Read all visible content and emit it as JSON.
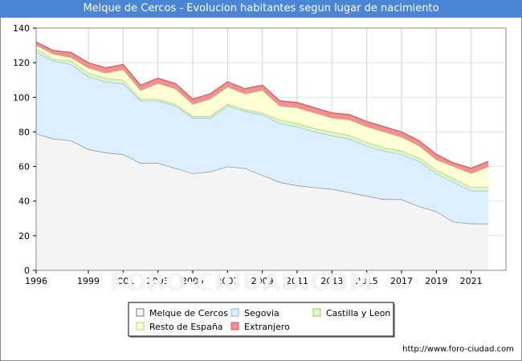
{
  "header": {
    "title": "Melque de Cercos - Evolucion habitantes segun lugar de nacimiento"
  },
  "footer": {
    "url": "http://www.foro-ciudad.com"
  },
  "watermark": "FORO-CIUDAD.COM",
  "chart_data": {
    "type": "area",
    "stacked": true,
    "title": "Melque de Cercos - Evolucion habitantes segun lugar de nacimiento",
    "x": [
      1996,
      1997,
      1998,
      1999,
      2000,
      2001,
      2002,
      2003,
      2004,
      2005,
      2006,
      2007,
      2008,
      2009,
      2010,
      2011,
      2012,
      2013,
      2014,
      2015,
      2016,
      2017,
      2018,
      2019,
      2020,
      2021,
      2022
    ],
    "x_tick_labels": [
      "1996",
      "1999",
      "2001",
      "2003",
      "2005",
      "2007",
      "2009",
      "2011",
      "2013",
      "2015",
      "2017",
      "2019",
      "2021"
    ],
    "x_tick_values": [
      1996,
      1999,
      2001,
      2003,
      2005,
      2007,
      2009,
      2011,
      2013,
      2015,
      2017,
      2019,
      2021
    ],
    "ylim": [
      0,
      140
    ],
    "y_ticks": [
      0,
      20,
      40,
      60,
      80,
      100,
      120,
      140
    ],
    "grid": true,
    "legend_position": "bottom-center",
    "series": [
      {
        "name": "Melque de Cercos",
        "color": "#f4f4f4",
        "line": "#7a7a7a",
        "values": [
          79,
          76,
          75,
          70,
          68,
          67,
          62,
          62,
          59,
          56,
          57,
          60,
          59,
          55,
          51,
          49,
          48,
          47,
          45,
          43,
          41,
          41,
          37,
          34,
          28,
          27,
          27
        ]
      },
      {
        "name": "Segovia",
        "color": "#ddeeff",
        "line": "#8ab4e8",
        "values": [
          47,
          45,
          44,
          42,
          41,
          41,
          36,
          36,
          36,
          32,
          31,
          35,
          33,
          35,
          34,
          34,
          32,
          31,
          31,
          29,
          28,
          26,
          26,
          22,
          23,
          19,
          19
        ]
      },
      {
        "name": "Castilla y Leon",
        "color": "#dff7c8",
        "line": "#8cc860",
        "values": [
          2,
          1,
          2,
          2,
          2,
          2,
          1,
          1,
          1,
          1,
          1,
          1,
          1,
          1,
          2,
          2,
          2,
          2,
          2,
          2,
          2,
          2,
          2,
          2,
          2,
          2,
          2
        ]
      },
      {
        "name": "Resto de España",
        "color": "#ffffd6",
        "line": "#c8c87a",
        "values": [
          2,
          3,
          2,
          3,
          3,
          6,
          5,
          9,
          9,
          7,
          10,
          10,
          9,
          13,
          8,
          9,
          9,
          8,
          9,
          9,
          9,
          8,
          7,
          6,
          7,
          8,
          12
        ]
      },
      {
        "name": "Extranjero",
        "color": "#f09090",
        "line": "#d05a5a",
        "values": [
          2,
          2,
          3,
          3,
          3,
          3,
          3,
          3,
          3,
          3,
          3,
          3,
          3,
          3,
          3,
          3,
          3,
          3,
          3,
          3,
          3,
          3,
          3,
          3,
          2,
          3,
          3
        ]
      }
    ],
    "legend_rows": [
      [
        "Melque de Cercos",
        "Segovia",
        "Castilla y Leon"
      ],
      [
        "Resto de España",
        "Extranjero"
      ]
    ]
  }
}
